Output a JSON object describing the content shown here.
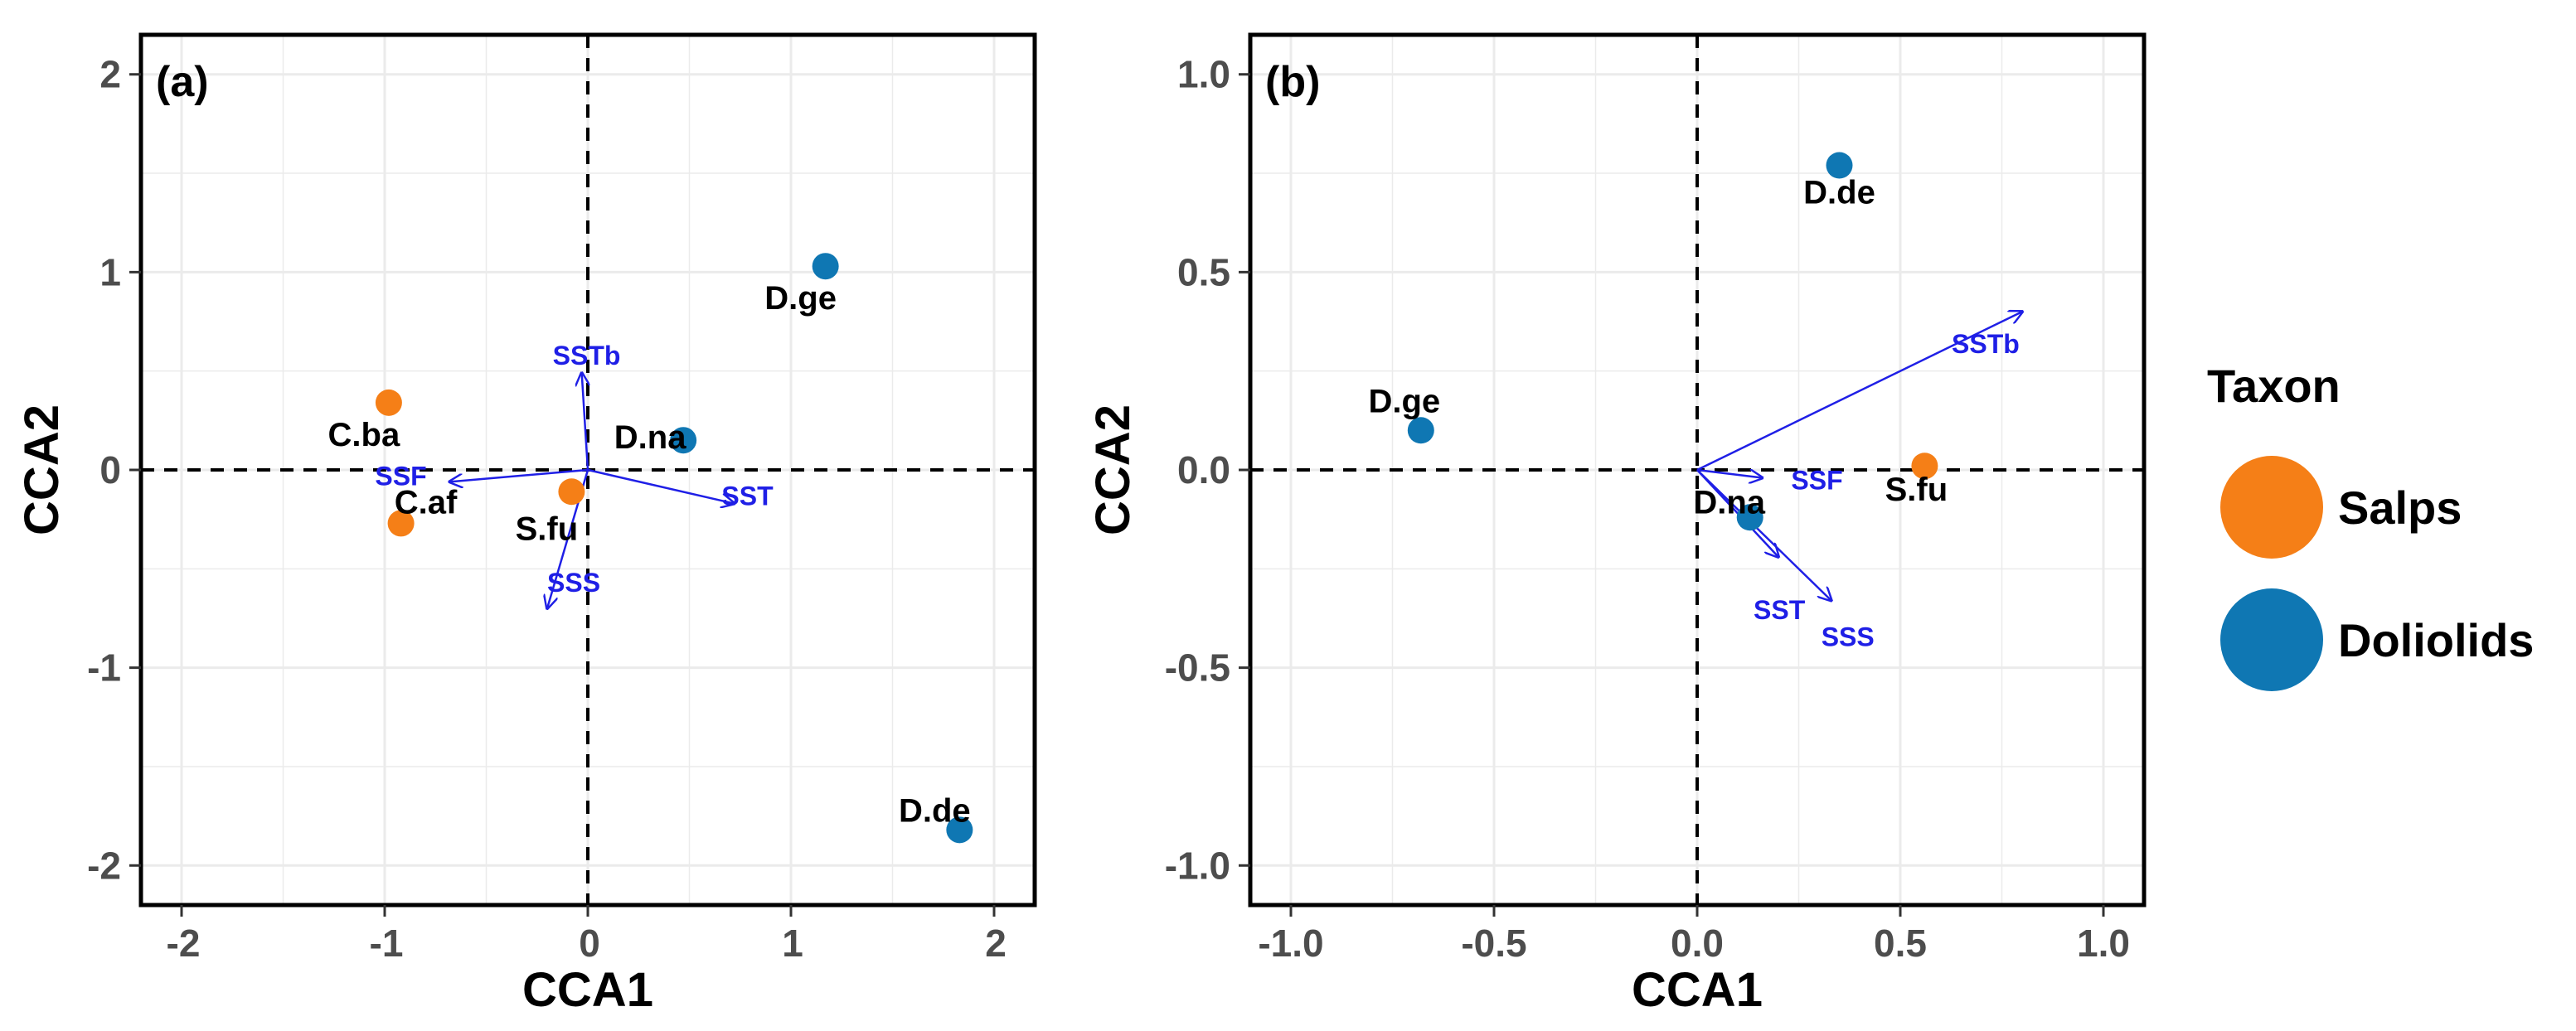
{
  "colors": {
    "Salps": "#f57f17",
    "Doliolids": "#0f77b3",
    "vector": "#1f1fe6",
    "grid": "#ebebeb",
    "tick_text": "#4d4d4d"
  },
  "legend": {
    "title": "Taxon",
    "items": [
      {
        "label": "Salps",
        "color": "#f57f17"
      },
      {
        "label": "Doliolids",
        "color": "#0f77b3"
      }
    ]
  },
  "chart_data": [
    {
      "type": "scatter",
      "panel_label": "(a)",
      "xlabel": "CCA1",
      "ylabel": "CCA2",
      "xlim": [
        -2.2,
        2.2
      ],
      "ylim": [
        -2.2,
        2.2
      ],
      "xticks": [
        -2,
        -1,
        0,
        1,
        2
      ],
      "xtick_labels": [
        "-2",
        "-1",
        "0",
        "1",
        "2"
      ],
      "yticks": [
        -2,
        -1,
        0,
        1,
        2
      ],
      "ytick_labels": [
        "-2",
        "-1",
        "0",
        "1",
        "2"
      ],
      "grid": true,
      "series": [
        {
          "name": "Salps",
          "points": [
            {
              "label": "C.ba",
              "x": -0.98,
              "y": 0.34
            },
            {
              "label": "C.af",
              "x": -0.92,
              "y": -0.27
            },
            {
              "label": "S.fu",
              "x": -0.08,
              "y": -0.11
            }
          ]
        },
        {
          "name": "Doliolids",
          "points": [
            {
              "label": "D.ge",
              "x": 1.17,
              "y": 1.03
            },
            {
              "label": "D.na",
              "x": 0.47,
              "y": 0.15
            },
            {
              "label": "D.de",
              "x": 1.83,
              "y": -1.82
            }
          ]
        }
      ],
      "vectors": [
        {
          "label": "SSTb",
          "x": -0.03,
          "y": 0.49
        },
        {
          "label": "SSF",
          "x": -0.68,
          "y": -0.06
        },
        {
          "label": "SST",
          "x": 0.72,
          "y": -0.17
        },
        {
          "label": "SSS",
          "x": -0.2,
          "y": -0.7
        }
      ]
    },
    {
      "type": "scatter",
      "panel_label": "(b)",
      "xlabel": "CCA1",
      "ylabel": "CCA2",
      "xlim": [
        -1.1,
        1.1
      ],
      "ylim": [
        -1.1,
        1.1
      ],
      "xticks": [
        -1,
        -0.5,
        0,
        0.5,
        1
      ],
      "xtick_labels": [
        "-1.0",
        "-0.5",
        "0.0",
        "0.5",
        "1.0"
      ],
      "yticks": [
        -1,
        -0.5,
        0,
        0.5,
        1
      ],
      "ytick_labels": [
        "-1.0",
        "-0.5",
        "0.0",
        "0.5",
        "1.0"
      ],
      "grid": true,
      "series": [
        {
          "name": "Salps",
          "points": [
            {
              "label": "S.fu",
              "x": 0.56,
              "y": 0.01
            }
          ]
        },
        {
          "name": "Doliolids",
          "points": [
            {
              "label": "D.de",
              "x": 0.35,
              "y": 0.77
            },
            {
              "label": "D.ge",
              "x": -0.68,
              "y": 0.1
            },
            {
              "label": "D.na",
              "x": 0.13,
              "y": -0.12
            }
          ]
        }
      ],
      "vectors": [
        {
          "label": "SSTb",
          "x": 0.8,
          "y": 0.4
        },
        {
          "label": "SSF",
          "x": 0.16,
          "y": -0.02
        },
        {
          "label": "SST",
          "x": 0.2,
          "y": -0.22
        },
        {
          "label": "SSS",
          "x": 0.33,
          "y": -0.33
        }
      ]
    }
  ]
}
